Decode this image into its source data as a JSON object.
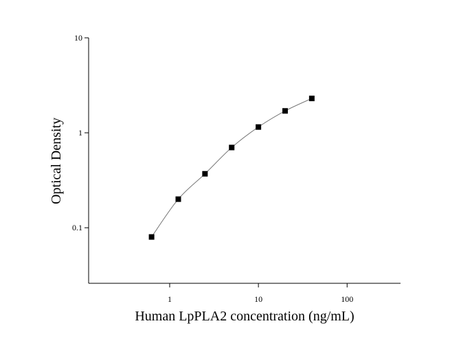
{
  "chart_data": {
    "type": "scatter",
    "xlabel": "Human LpPLA2 concentration (ng/mL)",
    "ylabel": "Optical Density",
    "x": [
      0.625,
      1.25,
      2.5,
      5,
      10,
      20,
      40
    ],
    "series": [
      {
        "values": [
          0.08,
          0.2,
          0.37,
          0.7,
          1.15,
          1.7,
          2.3
        ],
        "color": "#000000"
      }
    ],
    "fit_line": true,
    "fit_color": "#777777",
    "xscale": "log",
    "yscale": "log",
    "xlim": [
      0.122,
      400
    ],
    "ylim": [
      0.026,
      10
    ],
    "xticks": [
      1,
      10,
      100
    ],
    "yticks": [
      0.1,
      1,
      10
    ]
  }
}
